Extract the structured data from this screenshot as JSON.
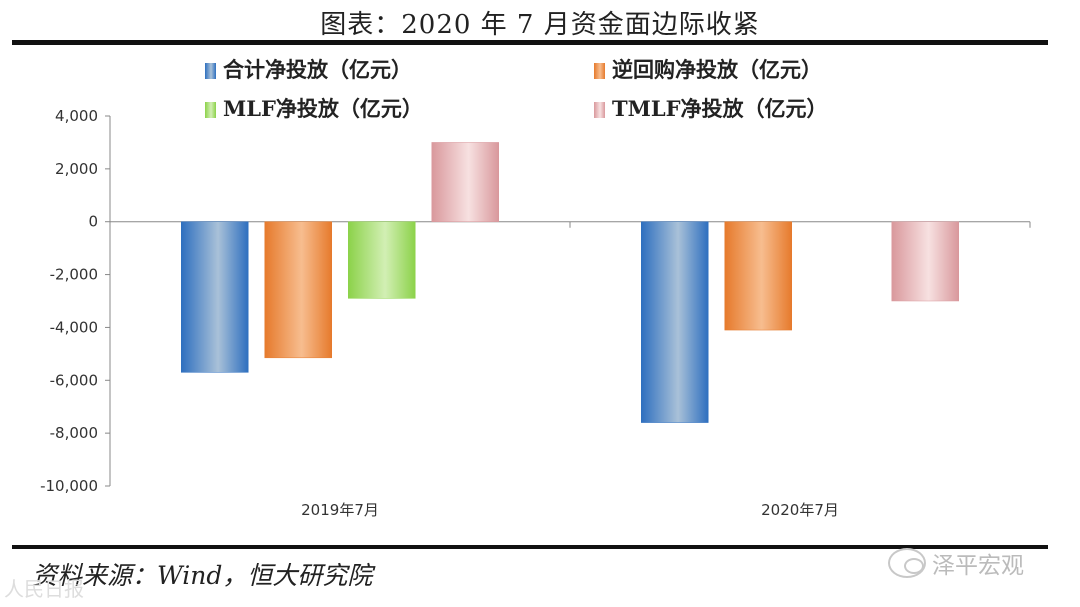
{
  "page": {
    "title": "图表：2020 年 7 月资金面边际收紧",
    "source": "资料来源：Wind，恒大研究院",
    "watermark": "泽平宏观",
    "watermark_bottom": "人民日报"
  },
  "chart_data": {
    "type": "bar",
    "title": "图表：2020 年 7 月资金面边际收紧",
    "xlabel": "",
    "ylabel": "",
    "categories": [
      "2019年7月",
      "2020年7月"
    ],
    "ylim": [
      -10000,
      4000
    ],
    "yticks": [
      4000,
      2000,
      0,
      -2000,
      -4000,
      -6000,
      -8000,
      -10000
    ],
    "ytick_labels": [
      "4,000",
      "2,000",
      "0",
      "-2,000",
      "-4,000",
      "-6,000",
      "-8,000",
      "-10,000"
    ],
    "grid": false,
    "legend": "top",
    "series": [
      {
        "name": "合计净投放（亿元）",
        "values": [
          -5700,
          -7600
        ],
        "color": "#2e6fbf",
        "color_light": "#a9c1d8"
      },
      {
        "name": "逆回购净投放（亿元）",
        "values": [
          -5150,
          -4100
        ],
        "color": "#e67a2c",
        "color_light": "#f7bd8f"
      },
      {
        "name": "MLF净投放（亿元）",
        "values": [
          -2900,
          0
        ],
        "color": "#8cd24a",
        "color_light": "#d2efb4"
      },
      {
        "name": "TMLF净投放（亿元）",
        "values": [
          3000,
          -3000
        ],
        "color": "#d9989c",
        "color_light": "#f7e1e1"
      }
    ]
  }
}
